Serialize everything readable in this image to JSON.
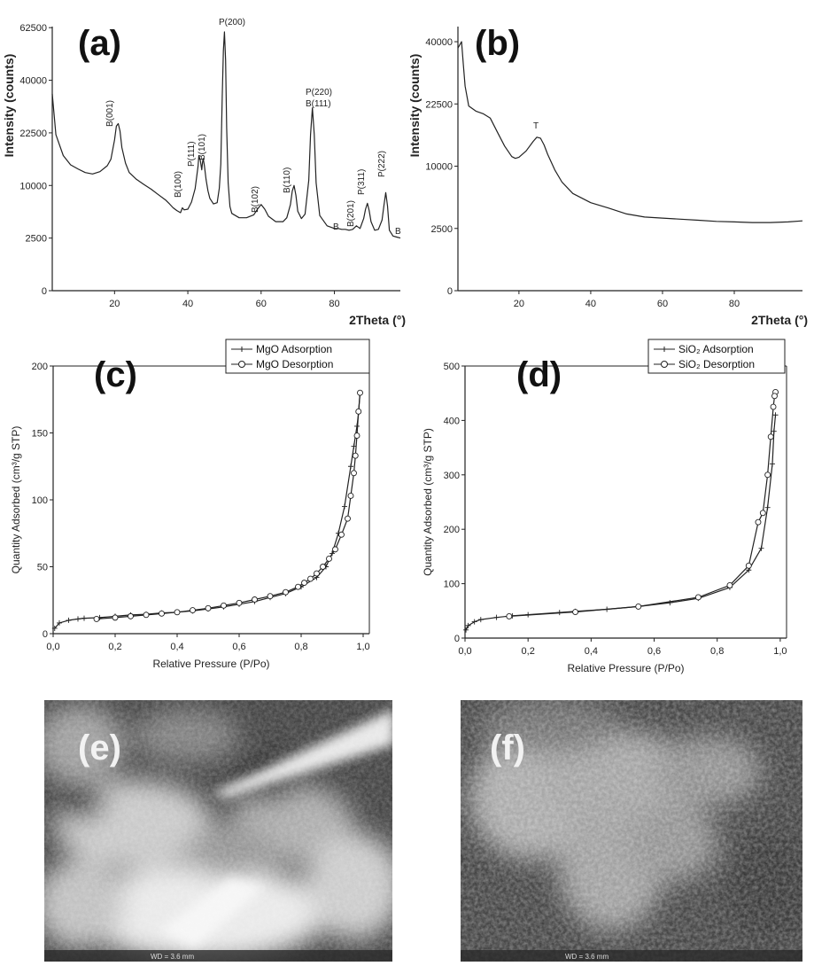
{
  "panels": {
    "a": {
      "label": "(a)"
    },
    "b": {
      "label": "(b)"
    },
    "c": {
      "label": "(c)"
    },
    "d": {
      "label": "(d)"
    },
    "e": {
      "label": "(e)",
      "footer": "WD = 3.6 mm"
    },
    "f": {
      "label": "(f)",
      "footer": "WD = 3.6 mm"
    }
  },
  "chart_data": [
    {
      "id": "a",
      "type": "line",
      "xlabel": "2Theta (°)",
      "ylabel": "Intensity (counts)",
      "xlim": [
        3,
        98
      ],
      "ylim": [
        0,
        63000
      ],
      "y_scale": "sqrt",
      "xticks": [
        20,
        40,
        60,
        80
      ],
      "yticks": [
        0,
        2500,
        10000,
        22500,
        40000,
        62500
      ],
      "series": [
        {
          "x": [
            3,
            4,
            6,
            8,
            10,
            12,
            14,
            16,
            18,
            19,
            20,
            20.5,
            21,
            21.5,
            22,
            23,
            24,
            26,
            28,
            30,
            32,
            34,
            35,
            36,
            37,
            38,
            38.5,
            39,
            40,
            41,
            42,
            42.8,
            43,
            43.4,
            43.8,
            44,
            44.2,
            44.5,
            45,
            45.5,
            46,
            47,
            48,
            48.6,
            49,
            49.4,
            49.7,
            50,
            50.3,
            50.6,
            51,
            51.5,
            52,
            54,
            56,
            58,
            59,
            60,
            61,
            62,
            64,
            66,
            67,
            68,
            68.5,
            69,
            69.5,
            70,
            71,
            72,
            73,
            73.5,
            74,
            74.5,
            75,
            76,
            78,
            80,
            81,
            82,
            83,
            84,
            85,
            86,
            87,
            88,
            88.5,
            89,
            89.5,
            90,
            91,
            92,
            93,
            93.5,
            94,
            94.5,
            95,
            96,
            97,
            98
          ],
          "y": [
            35000,
            22000,
            16500,
            14300,
            13400,
            12600,
            12300,
            12800,
            14100,
            15600,
            20500,
            24500,
            25200,
            23000,
            18500,
            14700,
            12600,
            11200,
            10200,
            9300,
            8300,
            7400,
            6800,
            6200,
            5800,
            5500,
            6200,
            5900,
            6000,
            7100,
            9400,
            14000,
            16500,
            15400,
            13200,
            14800,
            15800,
            14200,
            11100,
            9000,
            7700,
            6800,
            7000,
            9500,
            14500,
            34000,
            52000,
            60500,
            48000,
            24000,
            10500,
            6400,
            5400,
            4800,
            4800,
            5200,
            6000,
            6700,
            6000,
            5000,
            4300,
            4300,
            4800,
            6700,
            9000,
            10000,
            8200,
            5700,
            4700,
            5300,
            11000,
            22000,
            30200,
            22000,
            10500,
            5100,
            3800,
            3500,
            3500,
            3400,
            3400,
            3300,
            3400,
            3800,
            3500,
            4700,
            6000,
            6900,
            5800,
            4300,
            3300,
            3400,
            4500,
            6500,
            8700,
            6500,
            3300,
            2700,
            2600,
            2500
          ]
        }
      ],
      "annotations": [
        "B(001)",
        "B(100)",
        "P(111)",
        "B(101)",
        "P(200)",
        "B(102)",
        "B(110)",
        "P(220)",
        "B(111)",
        "B",
        "B(201)",
        "P(311)",
        "P(222)",
        "B"
      ]
    },
    {
      "id": "b",
      "type": "line",
      "xlabel": "2Theta (°)",
      "ylabel": "Intensity (counts)",
      "xlim": [
        3,
        99
      ],
      "ylim": [
        0,
        45000
      ],
      "y_scale": "sqrt",
      "xticks": [
        20,
        40,
        60,
        80
      ],
      "yticks": [
        0,
        2500,
        10000,
        22500,
        40000
      ],
      "series": [
        {
          "x": [
            3,
            4,
            4.5,
            5,
            6,
            8,
            10,
            12,
            14,
            16,
            18,
            19,
            20,
            22,
            24,
            25,
            26,
            27,
            28,
            30,
            32,
            35,
            40,
            45,
            50,
            55,
            60,
            65,
            70,
            75,
            80,
            85,
            90,
            95,
            99
          ],
          "y": [
            38000,
            40000,
            33000,
            27000,
            22000,
            20800,
            20200,
            19200,
            16200,
            13500,
            11600,
            11300,
            11500,
            12600,
            14400,
            15200,
            15000,
            13700,
            12000,
            9400,
            7600,
            6100,
            5000,
            4400,
            3800,
            3500,
            3400,
            3300,
            3200,
            3100,
            3050,
            3000,
            3000,
            3050,
            3150
          ]
        }
      ],
      "annotations": [
        "T"
      ]
    },
    {
      "id": "c",
      "type": "line",
      "xlabel": "Relative Pressure (P/Po)",
      "ylabel": "Quantity Adsorbed (cm³/g STP)",
      "xlim": [
        0,
        1.02
      ],
      "ylim": [
        0,
        200
      ],
      "xticks": [
        0.0,
        0.2,
        0.4,
        0.6,
        0.8,
        1.0
      ],
      "xtick_labels": [
        "0,0",
        "0,2",
        "0,4",
        "0,6",
        "0,8",
        "1,0"
      ],
      "yticks": [
        0,
        50,
        100,
        150,
        200
      ],
      "legend": "top-right",
      "series": [
        {
          "name": "MgO Adsorption",
          "marker": "plus",
          "x": [
            0.005,
            0.02,
            0.05,
            0.08,
            0.1,
            0.15,
            0.2,
            0.25,
            0.3,
            0.35,
            0.4,
            0.45,
            0.5,
            0.55,
            0.6,
            0.65,
            0.7,
            0.75,
            0.8,
            0.85,
            0.88,
            0.9,
            0.92,
            0.94,
            0.96,
            0.97,
            0.98,
            0.985,
            0.99
          ],
          "y": [
            4,
            8,
            10,
            11,
            11.5,
            12,
            13,
            14,
            14.5,
            15.5,
            16,
            17,
            18.5,
            20,
            22,
            24,
            27,
            30,
            35,
            42,
            50,
            60,
            75,
            95,
            125,
            140,
            155,
            165,
            180
          ]
        },
        {
          "name": "MgO Desorption",
          "marker": "circle",
          "x": [
            0.99,
            0.985,
            0.98,
            0.975,
            0.97,
            0.96,
            0.95,
            0.93,
            0.91,
            0.89,
            0.87,
            0.85,
            0.83,
            0.81,
            0.79,
            0.75,
            0.7,
            0.65,
            0.6,
            0.55,
            0.5,
            0.45,
            0.4,
            0.35,
            0.3,
            0.25,
            0.2,
            0.14
          ],
          "y": [
            180,
            166,
            148,
            133,
            120,
            103,
            86,
            74,
            63,
            56,
            50,
            45,
            41,
            38,
            35,
            31,
            28,
            25.5,
            23,
            21,
            19,
            17.5,
            16,
            15,
            14,
            13,
            12,
            11
          ]
        }
      ]
    },
    {
      "id": "d",
      "type": "line",
      "xlabel": "Relative Pressure (P/Po)",
      "ylabel": "Quantity Adsorbed (cm³/g STP)",
      "xlim": [
        0,
        1.02
      ],
      "ylim": [
        0,
        500
      ],
      "xticks": [
        0.0,
        0.2,
        0.4,
        0.6,
        0.8,
        1.0
      ],
      "xtick_labels": [
        "0,0",
        "0,2",
        "0,4",
        "0,6",
        "0,8",
        "1,0"
      ],
      "yticks": [
        0,
        100,
        200,
        300,
        400,
        500
      ],
      "legend": "top-right",
      "series": [
        {
          "name": "SiO₂ Adsorption",
          "marker": "plus",
          "x": [
            0.003,
            0.01,
            0.03,
            0.05,
            0.1,
            0.15,
            0.2,
            0.3,
            0.35,
            0.45,
            0.55,
            0.65,
            0.74,
            0.84,
            0.9,
            0.94,
            0.96,
            0.975,
            0.98,
            0.985
          ],
          "y": [
            15,
            23,
            30,
            34,
            38,
            41,
            43,
            47,
            49,
            53,
            58,
            65,
            73,
            93,
            125,
            165,
            240,
            320,
            380,
            410
          ]
        },
        {
          "name": "SiO₂ Desorption",
          "marker": "circle",
          "x": [
            0.985,
            0.982,
            0.978,
            0.97,
            0.96,
            0.945,
            0.93,
            0.9,
            0.84,
            0.74,
            0.55,
            0.35,
            0.14
          ],
          "y": [
            452,
            445,
            425,
            370,
            300,
            230,
            213,
            133,
            97,
            75,
            58,
            48,
            40
          ]
        }
      ]
    }
  ]
}
